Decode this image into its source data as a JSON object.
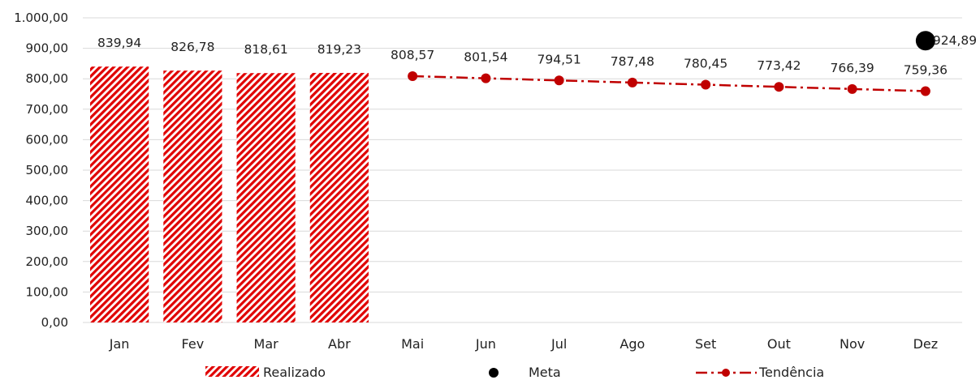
{
  "chart_data": {
    "type": "bar",
    "categories": [
      "Jan",
      "Fev",
      "Mar",
      "Abr",
      "Mai",
      "Jun",
      "Jul",
      "Ago",
      "Set",
      "Out",
      "Nov",
      "Dez"
    ],
    "ylim": [
      0,
      1000
    ],
    "yticks": [
      "0,00",
      "100,00",
      "200,00",
      "300,00",
      "400,00",
      "500,00",
      "600,00",
      "700,00",
      "800,00",
      "900,00",
      "1.000,00"
    ],
    "grid": true,
    "legend_position": "bottom",
    "series": [
      {
        "name": "Realizado",
        "type": "bar",
        "pattern": "diagonal-hatch",
        "color": "#e00000",
        "values": [
          839.94,
          826.78,
          818.61,
          819.23,
          null,
          null,
          null,
          null,
          null,
          null,
          null,
          null
        ],
        "labels": [
          "839,94",
          "826,78",
          "818,61",
          "819,23",
          "",
          "",
          "",
          "",
          "",
          "",
          "",
          ""
        ]
      },
      {
        "name": "Meta",
        "type": "scatter",
        "color": "#000000",
        "values": [
          null,
          null,
          null,
          null,
          null,
          null,
          null,
          null,
          null,
          null,
          null,
          924.89
        ],
        "labels": [
          "",
          "",
          "",
          "",
          "",
          "",
          "",
          "",
          "",
          "",
          "",
          "924,89"
        ]
      },
      {
        "name": "Tendência",
        "type": "line",
        "style": "dash-dot",
        "color": "#c00000",
        "values": [
          null,
          null,
          null,
          null,
          808.57,
          801.54,
          794.51,
          787.48,
          780.45,
          773.42,
          766.39,
          759.36
        ],
        "labels": [
          "",
          "",
          "",
          "",
          "808,57",
          "801,54",
          "794,51",
          "787,48",
          "780,45",
          "773,42",
          "766,39",
          "759,36"
        ]
      }
    ]
  }
}
